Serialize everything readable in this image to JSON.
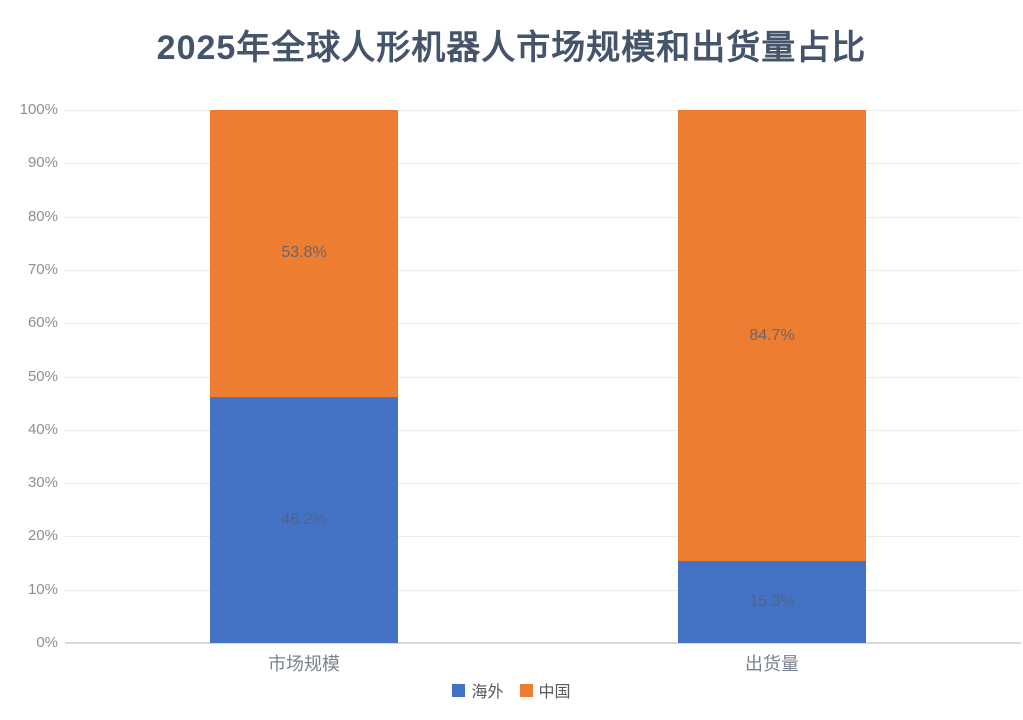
{
  "title": "2025年全球人形机器人市场规模和出货量占比",
  "chart_data": {
    "type": "bar",
    "variant": "stacked-percent",
    "title": "2025年全球人形机器人市场规模和出货量占比",
    "categories": [
      "市场规模",
      "出货量"
    ],
    "series": [
      {
        "name": "海外",
        "color": "#4472C4",
        "values": [
          46.2,
          15.3
        ],
        "labels": [
          "46.2%",
          "15.3%"
        ]
      },
      {
        "name": "中国",
        "color": "#ED7D31",
        "values": [
          53.8,
          84.7
        ],
        "labels": [
          "53.8%",
          "84.7%"
        ]
      }
    ],
    "y_axis": {
      "min": 0,
      "max": 100,
      "ticks": [
        "0%",
        "10%",
        "20%",
        "30%",
        "40%",
        "50%",
        "60%",
        "70%",
        "80%",
        "90%",
        "100%"
      ]
    },
    "grid": true,
    "legend_position": "bottom"
  },
  "colors": {
    "background": "#FFFFFF",
    "title": "#44546A",
    "series_overseas": "#4472C4",
    "series_china": "#ED7D31",
    "gridline": "#ECECEC",
    "axis_line": "#D9D9D9",
    "tick_label": "#8A8F96",
    "category_label": "#79828E",
    "data_label": "#55607A",
    "legend_text": "#595959"
  }
}
